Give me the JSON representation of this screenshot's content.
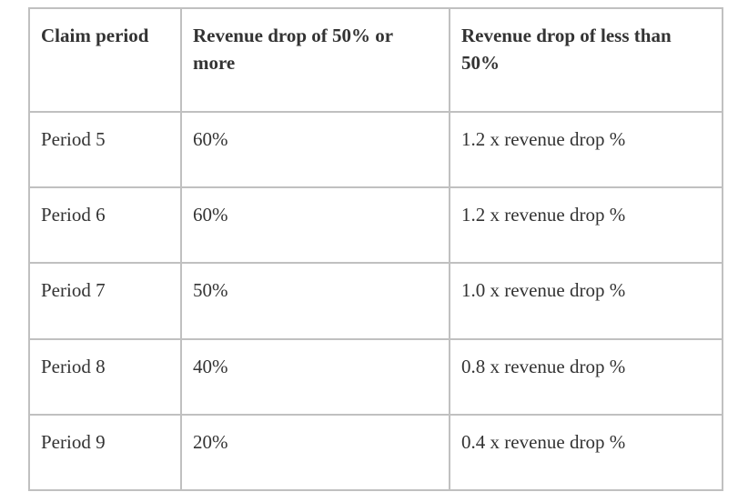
{
  "table": {
    "header": {
      "cells": [
        "Claim period",
        "Revenue drop of 50% or more",
        "Revenue drop of less than 50%"
      ]
    },
    "rows": [
      {
        "cells": [
          "Period 5",
          "60%",
          "1.2 x revenue drop %"
        ]
      },
      {
        "cells": [
          "Period 6",
          "60%",
          "1.2 x revenue drop %"
        ]
      },
      {
        "cells": [
          "Period 7",
          "50%",
          "1.0 x revenue drop %"
        ]
      },
      {
        "cells": [
          "Period 8",
          "40%",
          "0.8 x revenue drop %"
        ]
      },
      {
        "cells": [
          "Period 9",
          "20%",
          "0.4 x revenue drop %"
        ]
      }
    ],
    "colors": {
      "border": "#c0c0c0",
      "text": "#333333",
      "background": "#ffffff"
    }
  }
}
